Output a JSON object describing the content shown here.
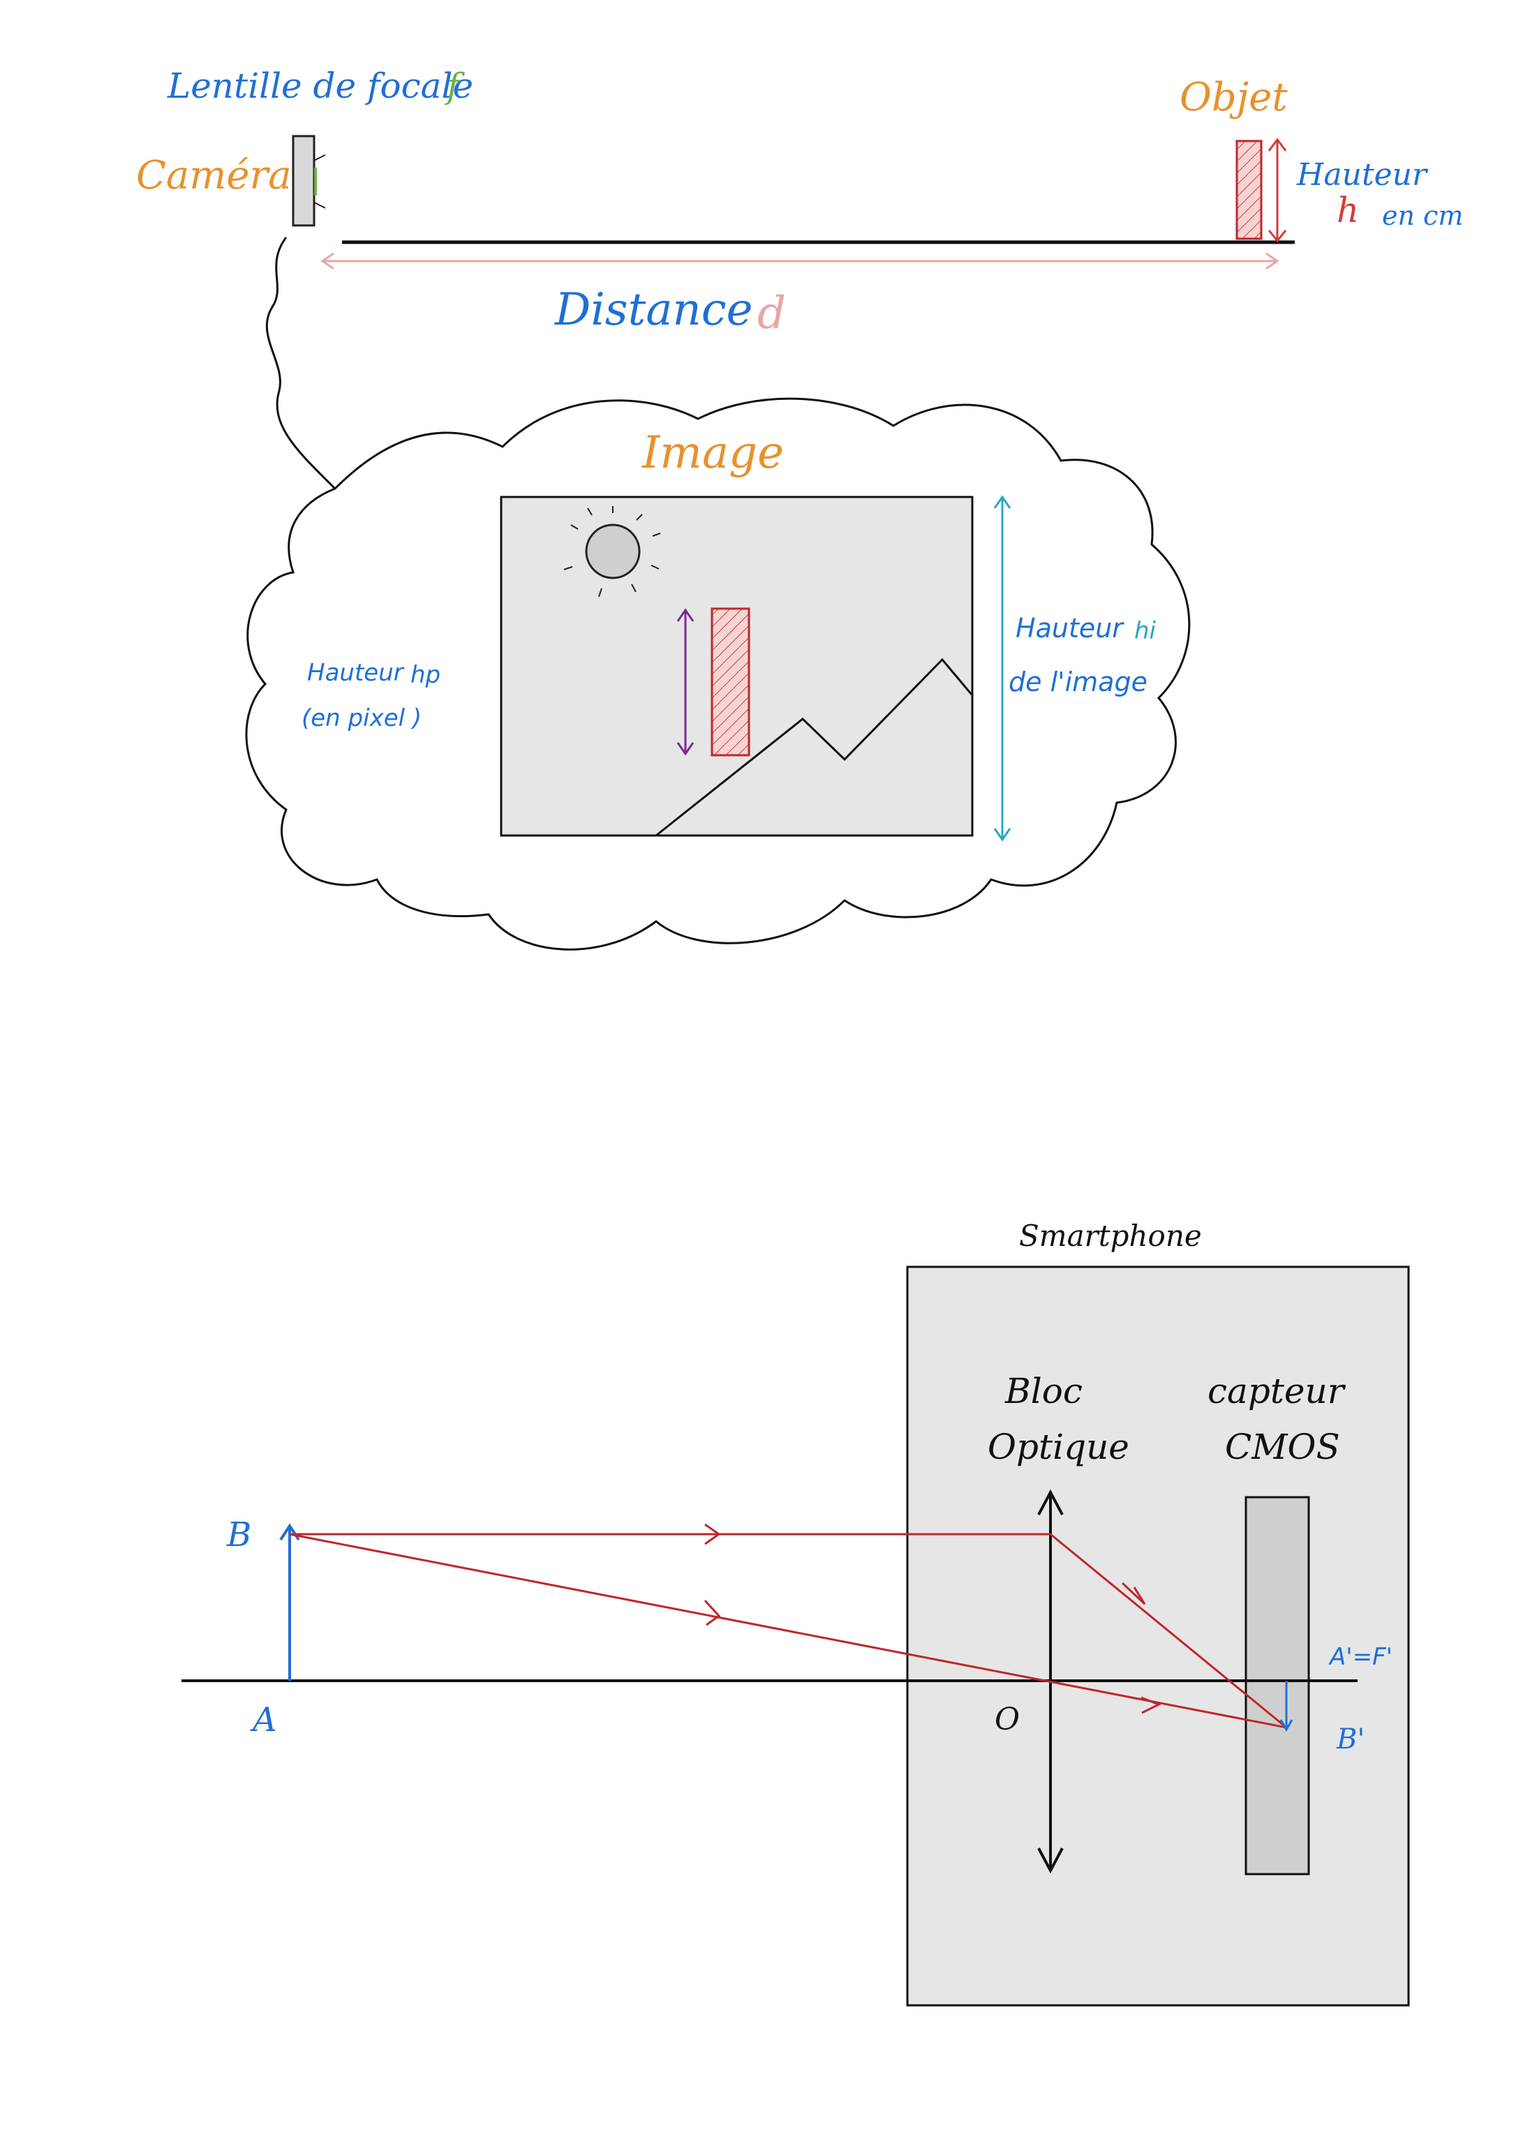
{
  "figure1": {
    "lens_label": "Lentille de focale",
    "lens_symbol": "f",
    "camera_label": "Caméra",
    "object_label": "Objet",
    "height_label": "Hauteur",
    "height_symbol": "h",
    "height_unit": "en cm",
    "distance_label": "Distance",
    "distance_symbol": "d",
    "colors": {
      "lens": "#1f6fd6",
      "focal": "#6ab04c",
      "camera": "#e8912d",
      "object": "#e8912d",
      "red": "#d63a3a",
      "blue": "#1f6fd6"
    }
  },
  "bubble": {
    "title": "Image",
    "pixel_height_label": "Hauteur",
    "pixel_height_symbol": "hp",
    "pixel_height_unit": "(en pixel )",
    "image_height_label": "Hauteur",
    "image_height_symbol": "hi",
    "image_height_suffix": "de l'image",
    "colors": {
      "title": "#e8912d",
      "blue": "#1f6fd6",
      "teal": "#29a8c4",
      "purple": "#7a2b8f"
    }
  },
  "figure2": {
    "device_label": "Smartphone",
    "optics_label_line1": "Bloc",
    "optics_label_line2": "Optique",
    "sensor_label_line1": "capteur",
    "sensor_label_line2": "CMOS",
    "point_A": "A",
    "point_B": "B",
    "point_O": "O",
    "point_A_prime": "A'=F'",
    "point_B_prime": "B'",
    "colors": {
      "ray": "#c0262a",
      "points": "#1f6fd6"
    }
  }
}
